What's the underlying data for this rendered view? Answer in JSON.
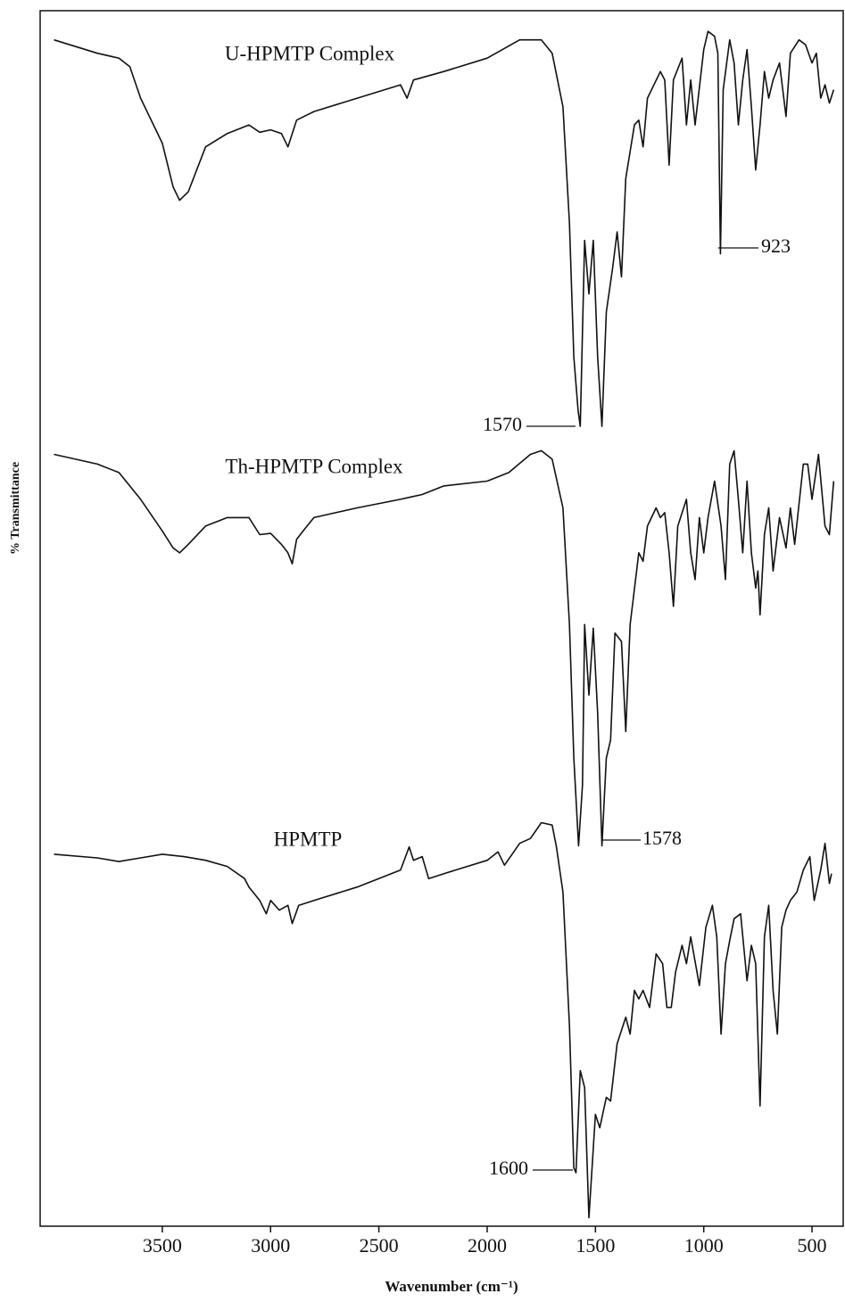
{
  "chart_data": {
    "type": "line",
    "xlabel": "Wavenumber (cm⁻¹)",
    "ylabel": "% Transmittance",
    "xlim": [
      4064,
      356
    ],
    "xticks": [
      3500,
      3000,
      2500,
      2000,
      1500,
      1000,
      500
    ],
    "ylim": [
      0,
      100
    ],
    "series": [
      {
        "name": "U-HPMTP Complex",
        "color": "#111111",
        "x": [
          4000,
          3800,
          3700,
          3650,
          3600,
          3500,
          3450,
          3420,
          3380,
          3300,
          3200,
          3100,
          3050,
          3000,
          2950,
          2920,
          2880,
          2800,
          2600,
          2400,
          2370,
          2340,
          2200,
          2000,
          1850,
          1750,
          1700,
          1650,
          1620,
          1600,
          1580,
          1570,
          1550,
          1530,
          1510,
          1490,
          1470,
          1450,
          1420,
          1400,
          1380,
          1360,
          1320,
          1300,
          1280,
          1260,
          1200,
          1180,
          1160,
          1140,
          1100,
          1080,
          1060,
          1040,
          1000,
          980,
          950,
          935,
          923,
          910,
          880,
          860,
          840,
          820,
          800,
          780,
          760,
          740,
          720,
          700,
          680,
          650,
          620,
          600,
          560,
          530,
          500,
          480,
          460,
          440,
          420,
          400
        ],
        "values": [
          97.6,
          96.5,
          96.1,
          95.4,
          92.8,
          89.1,
          85.5,
          84.4,
          85.1,
          88.8,
          89.9,
          90.6,
          90.0,
          90.2,
          89.9,
          88.8,
          91.0,
          91.7,
          92.8,
          93.9,
          92.8,
          94.3,
          95.0,
          96.1,
          97.6,
          97.6,
          96.5,
          92.1,
          82.5,
          71.5,
          67.1,
          65.8,
          81.1,
          76.7,
          81.1,
          71.5,
          65.8,
          75.2,
          78.9,
          81.8,
          78.1,
          86.2,
          90.6,
          91.0,
          88.8,
          92.8,
          95.0,
          94.3,
          87.3,
          94.3,
          96.1,
          90.6,
          94.3,
          90.6,
          96.8,
          98.3,
          97.9,
          96.5,
          80.0,
          93.5,
          97.6,
          95.7,
          90.6,
          94.3,
          96.8,
          92.1,
          86.9,
          90.6,
          95.0,
          92.8,
          94.3,
          95.7,
          91.3,
          96.5,
          97.6,
          97.2,
          95.7,
          96.5,
          92.8,
          93.9,
          92.4,
          93.5
        ]
      },
      {
        "name": "Th-HPMTP Complex",
        "color": "#111111",
        "x": [
          4000,
          3800,
          3700,
          3600,
          3500,
          3450,
          3420,
          3380,
          3300,
          3200,
          3100,
          3050,
          3000,
          2950,
          2920,
          2900,
          2880,
          2850,
          2800,
          2600,
          2400,
          2350,
          2300,
          2200,
          2000,
          1900,
          1800,
          1750,
          1700,
          1650,
          1620,
          1600,
          1578,
          1560,
          1550,
          1530,
          1510,
          1490,
          1470,
          1450,
          1430,
          1410,
          1380,
          1360,
          1340,
          1300,
          1280,
          1260,
          1220,
          1200,
          1180,
          1160,
          1140,
          1120,
          1080,
          1060,
          1040,
          1020,
          1000,
          980,
          950,
          920,
          900,
          880,
          860,
          840,
          820,
          800,
          780,
          760,
          750,
          740,
          720,
          700,
          680,
          650,
          620,
          600,
          580,
          540,
          520,
          500,
          470,
          440,
          420,
          400
        ],
        "values": [
          63.5,
          62.7,
          62.0,
          59.8,
          57.2,
          55.8,
          55.4,
          56.1,
          57.6,
          58.3,
          58.3,
          56.9,
          57.0,
          56.1,
          55.4,
          54.5,
          56.5,
          57.2,
          58.3,
          59.1,
          59.8,
          60.0,
          60.2,
          60.9,
          61.3,
          62.0,
          63.5,
          63.8,
          63.1,
          59.1,
          49.5,
          38.5,
          31.3,
          36.3,
          49.5,
          43.7,
          49.2,
          42.2,
          31.3,
          38.5,
          40.0,
          48.8,
          48.1,
          40.7,
          49.5,
          55.4,
          54.7,
          57.6,
          59.1,
          58.3,
          58.7,
          55.4,
          51.0,
          57.6,
          59.8,
          55.4,
          53.2,
          58.3,
          55.4,
          58.3,
          61.3,
          57.6,
          53.2,
          62.7,
          63.8,
          59.8,
          55.4,
          61.3,
          55.4,
          52.5,
          53.9,
          50.3,
          56.9,
          59.1,
          53.9,
          58.3,
          55.8,
          59.1,
          56.1,
          62.7,
          62.7,
          59.8,
          63.5,
          57.6,
          56.9,
          61.3
        ]
      },
      {
        "name": "HPMTP",
        "color": "#111111",
        "x": [
          4000,
          3800,
          3700,
          3600,
          3500,
          3400,
          3300,
          3200,
          3120,
          3100,
          3050,
          3020,
          3000,
          2960,
          2920,
          2900,
          2870,
          2800,
          2600,
          2400,
          2360,
          2340,
          2300,
          2270,
          2200,
          2000,
          1950,
          1920,
          1850,
          1800,
          1750,
          1700,
          1680,
          1650,
          1620,
          1600,
          1590,
          1570,
          1550,
          1530,
          1500,
          1480,
          1450,
          1430,
          1400,
          1360,
          1340,
          1320,
          1300,
          1280,
          1250,
          1220,
          1190,
          1170,
          1150,
          1130,
          1100,
          1080,
          1060,
          1020,
          990,
          960,
          940,
          920,
          900,
          880,
          860,
          830,
          800,
          780,
          760,
          740,
          720,
          700,
          680,
          660,
          640,
          620,
          600,
          570,
          540,
          510,
          490,
          460,
          440,
          420,
          410
        ],
        "values": [
          30.6,
          30.3,
          30.0,
          30.3,
          30.6,
          30.4,
          30.1,
          29.6,
          28.6,
          27.9,
          26.8,
          25.7,
          26.8,
          26.0,
          26.4,
          24.9,
          26.4,
          26.8,
          27.9,
          29.3,
          31.2,
          30.1,
          30.4,
          28.6,
          29.0,
          30.1,
          30.8,
          29.7,
          31.5,
          31.9,
          33.2,
          33.0,
          31.2,
          27.5,
          16.5,
          4.8,
          4.4,
          12.8,
          11.4,
          0.7,
          9.2,
          8.1,
          10.6,
          10.3,
          15.0,
          17.2,
          15.8,
          19.4,
          18.7,
          19.4,
          18.0,
          22.4,
          21.6,
          18.0,
          18.0,
          20.9,
          23.1,
          21.6,
          23.8,
          19.8,
          24.6,
          26.4,
          23.8,
          15.8,
          21.6,
          23.5,
          25.3,
          25.7,
          20.2,
          23.1,
          21.6,
          9.9,
          23.8,
          26.4,
          19.4,
          15.8,
          24.6,
          26.0,
          26.8,
          27.5,
          29.3,
          30.4,
          26.8,
          29.3,
          31.5,
          28.2,
          29.0
        ]
      }
    ],
    "annotations": [
      "1570",
      "923",
      "1578",
      "1600"
    ]
  }
}
